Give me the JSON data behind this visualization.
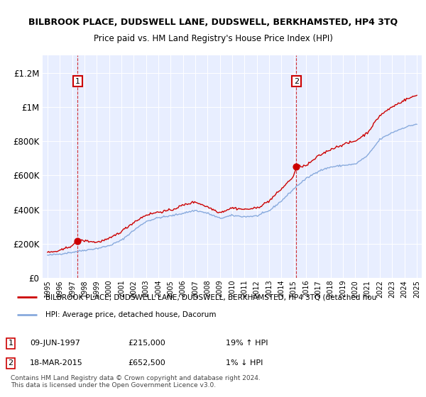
{
  "title": "BILBROOK PLACE, DUDSWELL LANE, DUDSWELL, BERKHAMSTED, HP4 3TQ",
  "subtitle": "Price paid vs. HM Land Registry's House Price Index (HPI)",
  "sale1_date": "09-JUN-1997",
  "sale1_price": 215000,
  "sale1_pct": "19% ↑ HPI",
  "sale2_date": "18-MAR-2015",
  "sale2_price": 652500,
  "sale2_pct": "1% ↓ HPI",
  "legend_label_red": "BILBROOK PLACE, DUDSWELL LANE, DUDSWELL, BERKHAMSTED, HP4 3TQ (detached hou",
  "legend_label_blue": "HPI: Average price, detached house, Dacorum",
  "footer": "Contains HM Land Registry data © Crown copyright and database right 2024.\nThis data is licensed under the Open Government Licence v3.0.",
  "ylabel_ticks": [
    "£0",
    "£200K",
    "£400K",
    "£600K",
    "£800K",
    "£1M",
    "£1.2M"
  ],
  "ylim": [
    0,
    1300000
  ],
  "xlim_start": 1994.6,
  "xlim_end": 2025.4,
  "sale1_x": 1997.44,
  "sale2_x": 2015.21,
  "bg_color": "#e8eeff",
  "red_color": "#cc0000",
  "blue_color": "#88aadd"
}
